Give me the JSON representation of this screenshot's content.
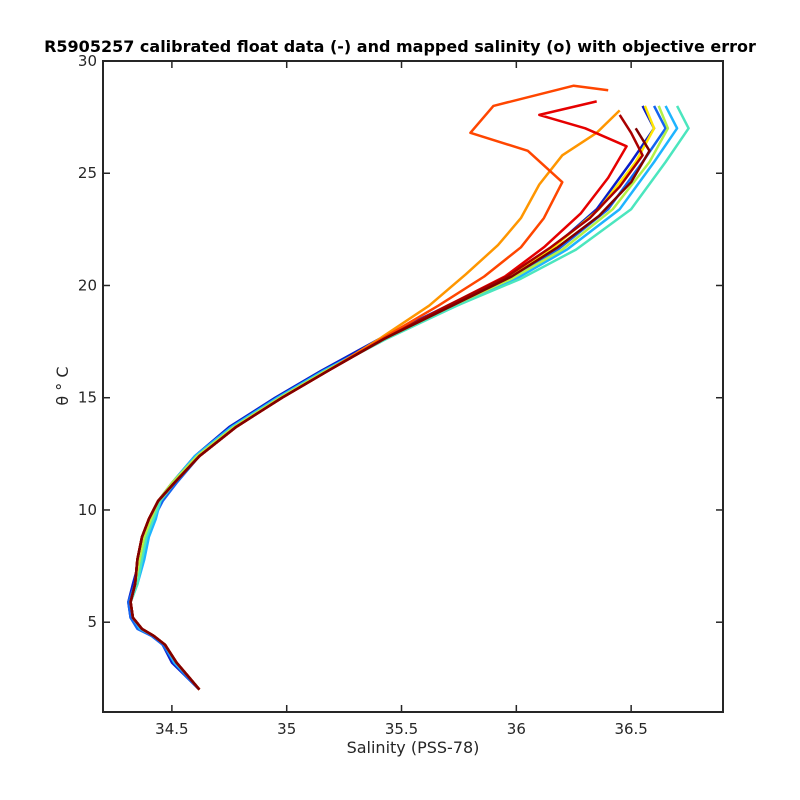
{
  "chart_data": {
    "type": "line",
    "title": "R5905257 calibrated float data (-) and mapped salinity (o) with objective error",
    "xlabel": "Salinity (PSS-78)",
    "ylabel": "θ ° C",
    "xlim": [
      34.2,
      36.9
    ],
    "ylim": [
      1,
      30
    ],
    "xticks": [
      34.5,
      35,
      35.5,
      36,
      36.5
    ],
    "yticks": [
      5,
      10,
      15,
      20,
      25,
      30
    ],
    "xtick_labels": [
      "34.5",
      "35",
      "35.5",
      "36",
      "36.5"
    ],
    "ytick_labels": [
      "5",
      "10",
      "15",
      "20",
      "25",
      "30"
    ],
    "grid": false,
    "legend": "none",
    "colormap": "jet (profile number)",
    "series": [
      {
        "color": "#0a1ec8",
        "x": [
          34.62,
          34.56,
          34.5,
          34.46,
          34.42,
          34.36,
          34.32,
          34.31,
          34.33,
          34.36,
          34.38,
          34.41,
          34.44,
          34.5,
          34.6,
          34.75,
          34.95,
          35.15,
          35.4,
          35.7,
          35.95,
          36.15,
          36.35,
          36.5,
          36.6,
          36.55
        ],
        "y": [
          2.0,
          2.6,
          3.2,
          4.0,
          4.4,
          4.7,
          5.2,
          5.9,
          6.7,
          7.8,
          8.8,
          9.6,
          10.4,
          11.2,
          12.4,
          13.7,
          15.0,
          16.2,
          17.6,
          19.1,
          20.3,
          21.6,
          23.4,
          25.5,
          27.0,
          28.0
        ]
      },
      {
        "color": "#1464f0",
        "x": [
          34.62,
          34.56,
          34.51,
          34.46,
          34.41,
          34.35,
          34.32,
          34.31,
          34.34,
          34.37,
          34.39,
          34.42,
          34.46,
          34.52,
          34.62,
          34.78,
          34.97,
          35.17,
          35.42,
          35.72,
          35.97,
          36.18,
          36.4,
          36.55,
          36.65,
          36.6
        ],
        "y": [
          2.0,
          2.6,
          3.2,
          4.0,
          4.4,
          4.7,
          5.2,
          5.9,
          6.7,
          7.8,
          8.8,
          9.6,
          10.4,
          11.2,
          12.4,
          13.7,
          15.0,
          16.2,
          17.6,
          19.1,
          20.3,
          21.6,
          23.4,
          25.5,
          27.0,
          28.0
        ]
      },
      {
        "color": "#1eb4ff",
        "x": [
          34.62,
          34.57,
          34.51,
          34.47,
          34.42,
          34.36,
          34.33,
          34.32,
          34.35,
          34.38,
          34.4,
          34.43,
          34.45,
          34.5,
          34.6,
          34.76,
          34.96,
          35.16,
          35.42,
          35.74,
          36.0,
          36.22,
          36.45,
          36.6,
          36.7,
          36.65
        ],
        "y": [
          2.0,
          2.6,
          3.2,
          4.0,
          4.4,
          4.7,
          5.2,
          5.9,
          6.7,
          7.8,
          8.8,
          9.6,
          10.4,
          11.2,
          12.4,
          13.7,
          15.0,
          16.2,
          17.6,
          19.1,
          20.3,
          21.6,
          23.4,
          25.5,
          27.0,
          28.0
        ]
      },
      {
        "color": "#4be6be",
        "x": [
          34.62,
          34.57,
          34.52,
          34.47,
          34.42,
          34.37,
          34.33,
          34.32,
          34.35,
          34.37,
          34.39,
          34.42,
          34.45,
          34.51,
          34.61,
          34.77,
          34.97,
          35.17,
          35.43,
          35.74,
          36.02,
          36.26,
          36.5,
          36.65,
          36.75,
          36.7
        ],
        "y": [
          2.0,
          2.6,
          3.2,
          4.0,
          4.4,
          4.7,
          5.2,
          5.9,
          6.7,
          7.8,
          8.8,
          9.6,
          10.4,
          11.2,
          12.4,
          13.7,
          15.0,
          16.2,
          17.6,
          19.1,
          20.3,
          21.6,
          23.4,
          25.5,
          27.0,
          28.0
        ]
      },
      {
        "color": "#b4f046",
        "x": [
          34.62,
          34.57,
          34.52,
          34.47,
          34.42,
          34.37,
          34.33,
          34.32,
          34.34,
          34.36,
          34.38,
          34.41,
          34.44,
          34.5,
          34.61,
          34.77,
          34.97,
          35.17,
          35.42,
          35.72,
          35.98,
          36.2,
          36.42,
          36.58,
          36.66,
          36.62
        ],
        "y": [
          2.0,
          2.6,
          3.2,
          4.0,
          4.4,
          4.7,
          5.2,
          5.9,
          6.7,
          7.8,
          8.8,
          9.6,
          10.4,
          11.2,
          12.4,
          13.7,
          15.0,
          16.2,
          17.6,
          19.1,
          20.3,
          21.6,
          23.4,
          25.5,
          27.0,
          28.0
        ]
      },
      {
        "color": "#ffe600",
        "x": [
          34.62,
          34.57,
          34.52,
          34.47,
          34.42,
          34.37,
          34.33,
          34.32,
          34.34,
          34.35,
          34.37,
          34.4,
          34.44,
          34.51,
          34.62,
          34.78,
          34.98,
          35.18,
          35.42,
          35.7,
          35.95,
          36.15,
          36.36,
          36.52,
          36.6,
          36.56
        ],
        "y": [
          2.0,
          2.6,
          3.2,
          4.0,
          4.4,
          4.7,
          5.2,
          5.9,
          6.7,
          7.8,
          8.8,
          9.6,
          10.4,
          11.2,
          12.4,
          13.7,
          15.0,
          16.2,
          17.6,
          19.1,
          20.3,
          21.6,
          23.4,
          25.5,
          27.0,
          28.0
        ]
      },
      {
        "color": "#ff9600",
        "x": [
          34.62,
          34.57,
          34.52,
          34.47,
          34.42,
          34.37,
          34.33,
          34.32,
          34.34,
          34.35,
          34.37,
          34.4,
          34.44,
          34.51,
          34.62,
          34.78,
          34.98,
          35.18,
          35.4,
          35.62,
          35.78,
          35.92,
          36.02,
          36.1,
          36.2,
          36.35,
          36.45
        ],
        "y": [
          2.0,
          2.6,
          3.2,
          4.0,
          4.4,
          4.7,
          5.2,
          5.9,
          6.7,
          7.8,
          8.8,
          9.6,
          10.4,
          11.2,
          12.4,
          13.7,
          15.0,
          16.2,
          17.6,
          19.1,
          20.5,
          21.8,
          23.0,
          24.5,
          25.8,
          26.8,
          27.8
        ]
      },
      {
        "color": "#ff4600",
        "x": [
          34.62,
          34.57,
          34.52,
          34.47,
          34.42,
          34.37,
          34.33,
          34.32,
          34.34,
          34.35,
          34.37,
          34.4,
          34.44,
          34.51,
          34.62,
          34.78,
          34.98,
          35.18,
          35.41,
          35.66,
          35.86,
          36.02,
          36.12,
          36.2,
          36.05,
          35.8,
          35.9,
          36.25,
          36.4
        ],
        "y": [
          2.0,
          2.6,
          3.2,
          4.0,
          4.4,
          4.7,
          5.2,
          5.9,
          6.7,
          7.8,
          8.8,
          9.6,
          10.4,
          11.2,
          12.4,
          13.7,
          15.0,
          16.2,
          17.6,
          19.1,
          20.4,
          21.7,
          23.0,
          24.6,
          26.0,
          26.8,
          28.0,
          28.9,
          28.7
        ]
      },
      {
        "color": "#e60000",
        "x": [
          34.62,
          34.57,
          34.52,
          34.47,
          34.42,
          34.37,
          34.33,
          34.32,
          34.34,
          34.35,
          34.37,
          34.4,
          34.44,
          34.51,
          34.62,
          34.78,
          34.98,
          35.18,
          35.42,
          35.7,
          35.95,
          36.12,
          36.28,
          36.4,
          36.48,
          36.3,
          36.1,
          36.35
        ],
        "y": [
          2.0,
          2.6,
          3.2,
          4.0,
          4.4,
          4.7,
          5.2,
          5.9,
          6.7,
          7.8,
          8.8,
          9.6,
          10.4,
          11.2,
          12.4,
          13.7,
          15.0,
          16.2,
          17.6,
          19.1,
          20.4,
          21.7,
          23.2,
          24.8,
          26.2,
          27.0,
          27.6,
          28.2
        ]
      },
      {
        "color": "#aa0000",
        "x": [
          34.62,
          34.57,
          34.52,
          34.47,
          34.42,
          34.37,
          34.33,
          34.32,
          34.34,
          34.35,
          34.37,
          34.4,
          34.44,
          34.51,
          34.62,
          34.78,
          34.98,
          35.18,
          35.42,
          35.7,
          35.96,
          36.15,
          36.32,
          36.45,
          36.55,
          36.5,
          36.45
        ],
        "y": [
          2.0,
          2.6,
          3.2,
          4.0,
          4.4,
          4.7,
          5.2,
          5.9,
          6.7,
          7.8,
          8.8,
          9.6,
          10.4,
          11.2,
          12.4,
          13.7,
          15.0,
          16.2,
          17.6,
          19.1,
          20.4,
          21.7,
          23.0,
          24.4,
          25.8,
          26.8,
          27.6
        ]
      },
      {
        "color": "#800000",
        "x": [
          34.62,
          34.57,
          34.52,
          34.47,
          34.42,
          34.37,
          34.33,
          34.32,
          34.34,
          34.35,
          34.37,
          34.4,
          34.44,
          34.51,
          34.62,
          34.78,
          34.98,
          35.18,
          35.42,
          35.72,
          35.98,
          36.18,
          36.36,
          36.5,
          36.58,
          36.52
        ],
        "y": [
          2.0,
          2.6,
          3.2,
          4.0,
          4.4,
          4.7,
          5.2,
          5.9,
          6.7,
          7.8,
          8.8,
          9.6,
          10.4,
          11.2,
          12.4,
          13.7,
          15.0,
          16.2,
          17.6,
          19.1,
          20.4,
          21.7,
          23.1,
          24.6,
          26.0,
          27.0
        ]
      }
    ]
  }
}
